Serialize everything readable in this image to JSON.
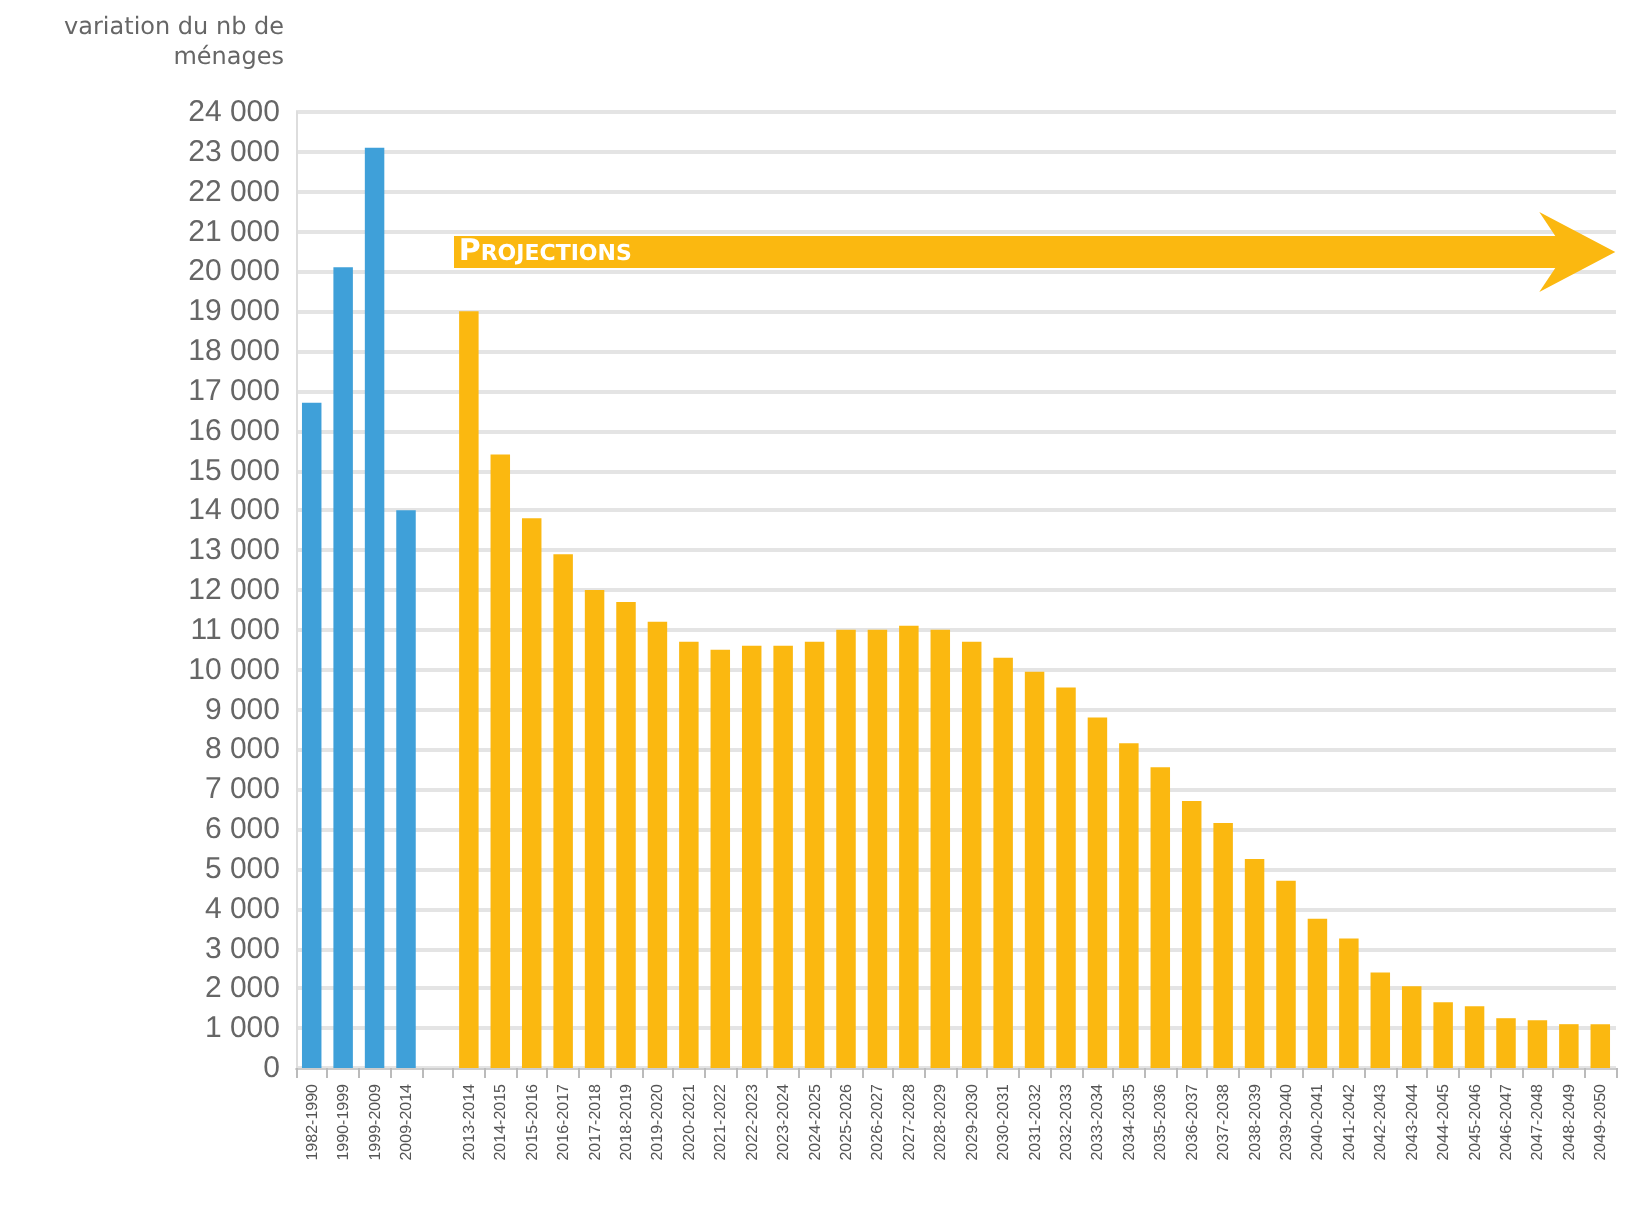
{
  "chart_data": {
    "type": "bar",
    "ylabel": "variation du nb de ménages",
    "annotations": [
      "Projections"
    ],
    "categories": [
      "1982-1990",
      "1990-1999",
      "1999-2009",
      "2009-2014",
      null,
      "2013-2014",
      "2014-2015",
      "2015-2016",
      "2016-2017",
      "2017-2018",
      "2018-2019",
      "2019-2020",
      "2020-2021",
      "2021-2022",
      "2022-2023",
      "2023-2024",
      "2024-2025",
      "2025-2026",
      "2026-2027",
      "2027-2028",
      "2028-2029",
      "2029-2030",
      "2030-2031",
      "2031-2032",
      "2032-2033",
      "2033-2034",
      "2034-2035",
      "2035-2036",
      "2036-2037",
      "2037-2038",
      "2038-2039",
      "2039-2040",
      "2040-2041",
      "2041-2042",
      "2042-2043",
      "2043-2044",
      "2044-2045",
      "2045-2046",
      "2046-2047",
      "2047-2048",
      "2048-2049",
      "2049-2050"
    ],
    "values": [
      16700,
      20100,
      23100,
      14000,
      null,
      19000,
      15400,
      13800,
      12900,
      12000,
      11700,
      11200,
      10700,
      10500,
      10600,
      10600,
      10700,
      11000,
      11000,
      11100,
      11000,
      10700,
      10300,
      9950,
      9550,
      8800,
      8150,
      7550,
      6700,
      6150,
      5250,
      4700,
      3750,
      3250,
      2400,
      2050,
      1650,
      1550,
      1250,
      1200,
      1100,
      1100
    ],
    "colors": [
      "#3fa0d9",
      "#3fa0d9",
      "#3fa0d9",
      "#3fa0d9",
      null,
      "#fbb810",
      "#fbb810",
      "#fbb810",
      "#fbb810",
      "#fbb810",
      "#fbb810",
      "#fbb810",
      "#fbb810",
      "#fbb810",
      "#fbb810",
      "#fbb810",
      "#fbb810",
      "#fbb810",
      "#fbb810",
      "#fbb810",
      "#fbb810",
      "#fbb810",
      "#fbb810",
      "#fbb810",
      "#fbb810",
      "#fbb810",
      "#fbb810",
      "#fbb810",
      "#fbb810",
      "#fbb810",
      "#fbb810",
      "#fbb810",
      "#fbb810",
      "#fbb810",
      "#fbb810",
      "#fbb810",
      "#fbb810",
      "#fbb810",
      "#fbb810",
      "#fbb810",
      "#fbb810",
      "#fbb810"
    ],
    "ylim": [
      0,
      24000
    ],
    "yticks": [
      {
        "value": 0,
        "label": "0"
      },
      {
        "value": 1000,
        "label": "1 000"
      },
      {
        "value": 2000,
        "label": "2 000"
      },
      {
        "value": 3000,
        "label": "3 000"
      },
      {
        "value": 4000,
        "label": "4 000"
      },
      {
        "value": 5000,
        "label": "5 000"
      },
      {
        "value": 6000,
        "label": "6 000"
      },
      {
        "value": 7000,
        "label": "7 000"
      },
      {
        "value": 8000,
        "label": "8 000"
      },
      {
        "value": 9000,
        "label": "9 000"
      },
      {
        "value": 10000,
        "label": "10 000"
      },
      {
        "value": 11000,
        "label": "11 000"
      },
      {
        "value": 12000,
        "label": "12 000"
      },
      {
        "value": 13000,
        "label": "13 000"
      },
      {
        "value": 14000,
        "label": "14 000"
      },
      {
        "value": 15000,
        "label": "15 000"
      },
      {
        "value": 16000,
        "label": "16 000"
      },
      {
        "value": 17000,
        "label": "17 000"
      },
      {
        "value": 18000,
        "label": "18 000"
      },
      {
        "value": 19000,
        "label": "19 000"
      },
      {
        "value": 20000,
        "label": "20 000"
      },
      {
        "value": 21000,
        "label": "21 000"
      },
      {
        "value": 22000,
        "label": "22 000"
      },
      {
        "value": 23000,
        "label": "23 000"
      },
      {
        "value": 24000,
        "label": "24 000"
      }
    ],
    "grid": "y"
  }
}
